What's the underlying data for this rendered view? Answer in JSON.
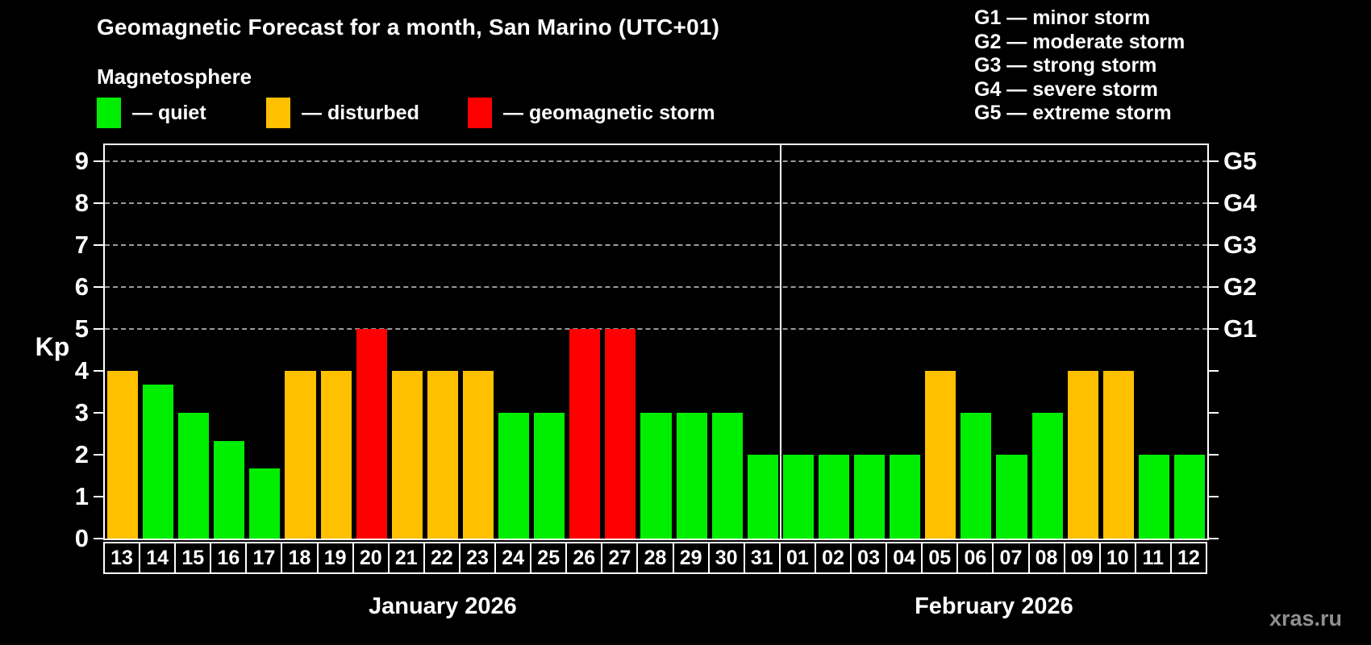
{
  "header": {
    "title": "Geomagnetic Forecast for a month, San Marino (UTC+01)",
    "subtitle": "Magnetosphere"
  },
  "legend": {
    "items": [
      {
        "key": "quiet",
        "label": "— quiet",
        "color": "#00ee00"
      },
      {
        "key": "disturbed",
        "label": "— disturbed",
        "color": "#ffc000"
      },
      {
        "key": "storm",
        "label": "— geomagnetic storm",
        "color": "#ff0000"
      }
    ]
  },
  "g_scale_legend": {
    "items": [
      "G1 — minor storm",
      "G2 — moderate storm",
      "G3 — strong storm",
      "G4 — severe storm",
      "G5 — extreme storm"
    ]
  },
  "chart_data": {
    "type": "bar",
    "title": "Geomagnetic Forecast for a month, San Marino (UTC+01)",
    "ylabel": "Kp",
    "ylim": [
      0,
      9.4
    ],
    "yticks": [
      0,
      1,
      2,
      3,
      4,
      5,
      6,
      7,
      8,
      9
    ],
    "gridlines_at": [
      5,
      6,
      7,
      8,
      9
    ],
    "grid": "dashed horizontal at G-storm levels only",
    "right_axis_labels": [
      {
        "value": 5,
        "label": "G1"
      },
      {
        "value": 6,
        "label": "G2"
      },
      {
        "value": 7,
        "label": "G3"
      },
      {
        "value": 8,
        "label": "G4"
      },
      {
        "value": 9,
        "label": "G5"
      }
    ],
    "categories": [
      "13",
      "14",
      "15",
      "16",
      "17",
      "18",
      "19",
      "20",
      "21",
      "22",
      "23",
      "24",
      "25",
      "26",
      "27",
      "28",
      "29",
      "30",
      "31",
      "01",
      "02",
      "03",
      "04",
      "05",
      "06",
      "07",
      "08",
      "09",
      "10",
      "11",
      "12"
    ],
    "values": [
      4,
      3.67,
      3,
      2.33,
      1.67,
      4,
      4,
      5,
      4,
      4,
      4,
      3,
      3,
      5,
      5,
      3,
      3,
      3,
      2,
      2,
      2,
      2,
      2,
      4,
      3,
      2,
      3,
      4,
      4,
      2,
      2
    ],
    "status": [
      "disturbed",
      "quiet",
      "quiet",
      "quiet",
      "quiet",
      "disturbed",
      "disturbed",
      "storm",
      "disturbed",
      "disturbed",
      "disturbed",
      "quiet",
      "quiet",
      "storm",
      "storm",
      "quiet",
      "quiet",
      "quiet",
      "quiet",
      "quiet",
      "quiet",
      "quiet",
      "quiet",
      "disturbed",
      "quiet",
      "quiet",
      "quiet",
      "disturbed",
      "disturbed",
      "quiet",
      "quiet"
    ],
    "colors": {
      "quiet": "#00ee00",
      "disturbed": "#ffc000",
      "storm": "#ff0000"
    },
    "month_groups": [
      {
        "label": "January 2026",
        "start": 0,
        "count": 19
      },
      {
        "label": "February 2026",
        "start": 19,
        "count": 12
      }
    ]
  },
  "watermark": "xras.ru"
}
